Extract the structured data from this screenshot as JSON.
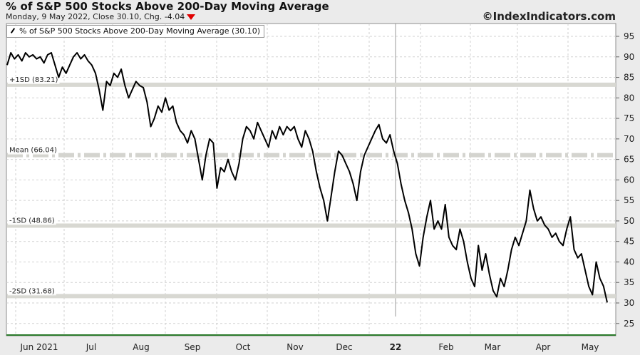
{
  "header": {
    "title": "% of S&P 500 Stocks Above 200-Day Moving Average",
    "date": "Monday, 9 May 2022,",
    "close_label": "Close 30.10,",
    "chg_label": "Chg. -4.04",
    "copyright": "©IndexIndicators.com"
  },
  "legend": {
    "label": "% of S&P 500 Stocks Above 200-Day Moving Average (30.10)"
  },
  "colors": {
    "line": "#000000",
    "band": "#d8d8d2",
    "down_arrow": "#e00000",
    "bottom_line": "#2a7a2a"
  },
  "chart_data": {
    "type": "line",
    "ylim": [
      25,
      96
    ],
    "y_ticks": [
      "95",
      "90",
      "85",
      "80",
      "75",
      "70",
      "65",
      "60",
      "55",
      "50",
      "45",
      "40",
      "35",
      "30",
      "25"
    ],
    "x_ticks": [
      "Jun 2021",
      "Jul",
      "Aug",
      "Sep",
      "Oct",
      "Nov",
      "Dec",
      "22",
      "Feb",
      "Mar",
      "Apr",
      "May"
    ],
    "reference_lines": [
      {
        "label": "+1SD (83.21)",
        "value": 83.21,
        "style": "solid"
      },
      {
        "label": "Mean (66.04)",
        "value": 66.04,
        "style": "dashdot"
      },
      {
        "label": "-1SD (48.86)",
        "value": 48.86,
        "style": "solid"
      },
      {
        "label": "-2SD (31.68)",
        "value": 31.68,
        "style": "solid"
      }
    ],
    "series": [
      {
        "name": "% of S&P 500 Stocks Above 200-Day Moving Average",
        "values": [
          88.0,
          91.0,
          89.5,
          90.5,
          89.0,
          91.0,
          90.0,
          90.5,
          89.5,
          90.0,
          88.5,
          90.5,
          91.0,
          88.0,
          85.0,
          87.5,
          86.0,
          88.0,
          90.0,
          91.0,
          89.5,
          90.5,
          89.0,
          88.0,
          86.0,
          82.0,
          77.0,
          84.0,
          83.0,
          86.0,
          85.0,
          87.0,
          83.0,
          80.0,
          82.0,
          84.0,
          83.0,
          82.5,
          79.0,
          73.0,
          75.0,
          78.0,
          76.5,
          80.0,
          77.0,
          78.0,
          74.0,
          72.0,
          71.0,
          69.0,
          72.0,
          70.0,
          65.0,
          60.0,
          66.0,
          70.0,
          69.0,
          58.0,
          63.0,
          62.0,
          65.0,
          62.0,
          60.0,
          64.0,
          70.0,
          73.0,
          72.0,
          70.0,
          74.0,
          72.0,
          70.0,
          68.0,
          72.0,
          70.0,
          73.0,
          71.0,
          73.0,
          72.0,
          73.0,
          70.0,
          68.0,
          72.0,
          70.0,
          67.0,
          62.0,
          58.0,
          55.0,
          50.0,
          56.0,
          62.0,
          67.0,
          66.0,
          64.0,
          62.0,
          59.0,
          55.0,
          62.0,
          66.0,
          68.0,
          70.0,
          72.0,
          73.5,
          70.0,
          69.0,
          71.0,
          67.0,
          64.0,
          59.0,
          55.0,
          52.0,
          48.0,
          42.0,
          39.0,
          46.0,
          51.0,
          55.0,
          48.0,
          50.0,
          48.0,
          54.0,
          46.0,
          44.0,
          43.0,
          48.0,
          45.0,
          40.0,
          36.0,
          34.0,
          44.0,
          38.0,
          42.0,
          37.0,
          33.0,
          31.5,
          36.0,
          34.0,
          38.0,
          43.0,
          46.0,
          44.0,
          47.0,
          50.0,
          57.5,
          53.0,
          50.0,
          51.0,
          49.0,
          48.0,
          46.0,
          47.0,
          45.0,
          44.0,
          48.0,
          51.0,
          43.0,
          41.0,
          42.0,
          38.0,
          34.0,
          32.0,
          40.0,
          36.0,
          34.1,
          30.1
        ]
      }
    ]
  }
}
